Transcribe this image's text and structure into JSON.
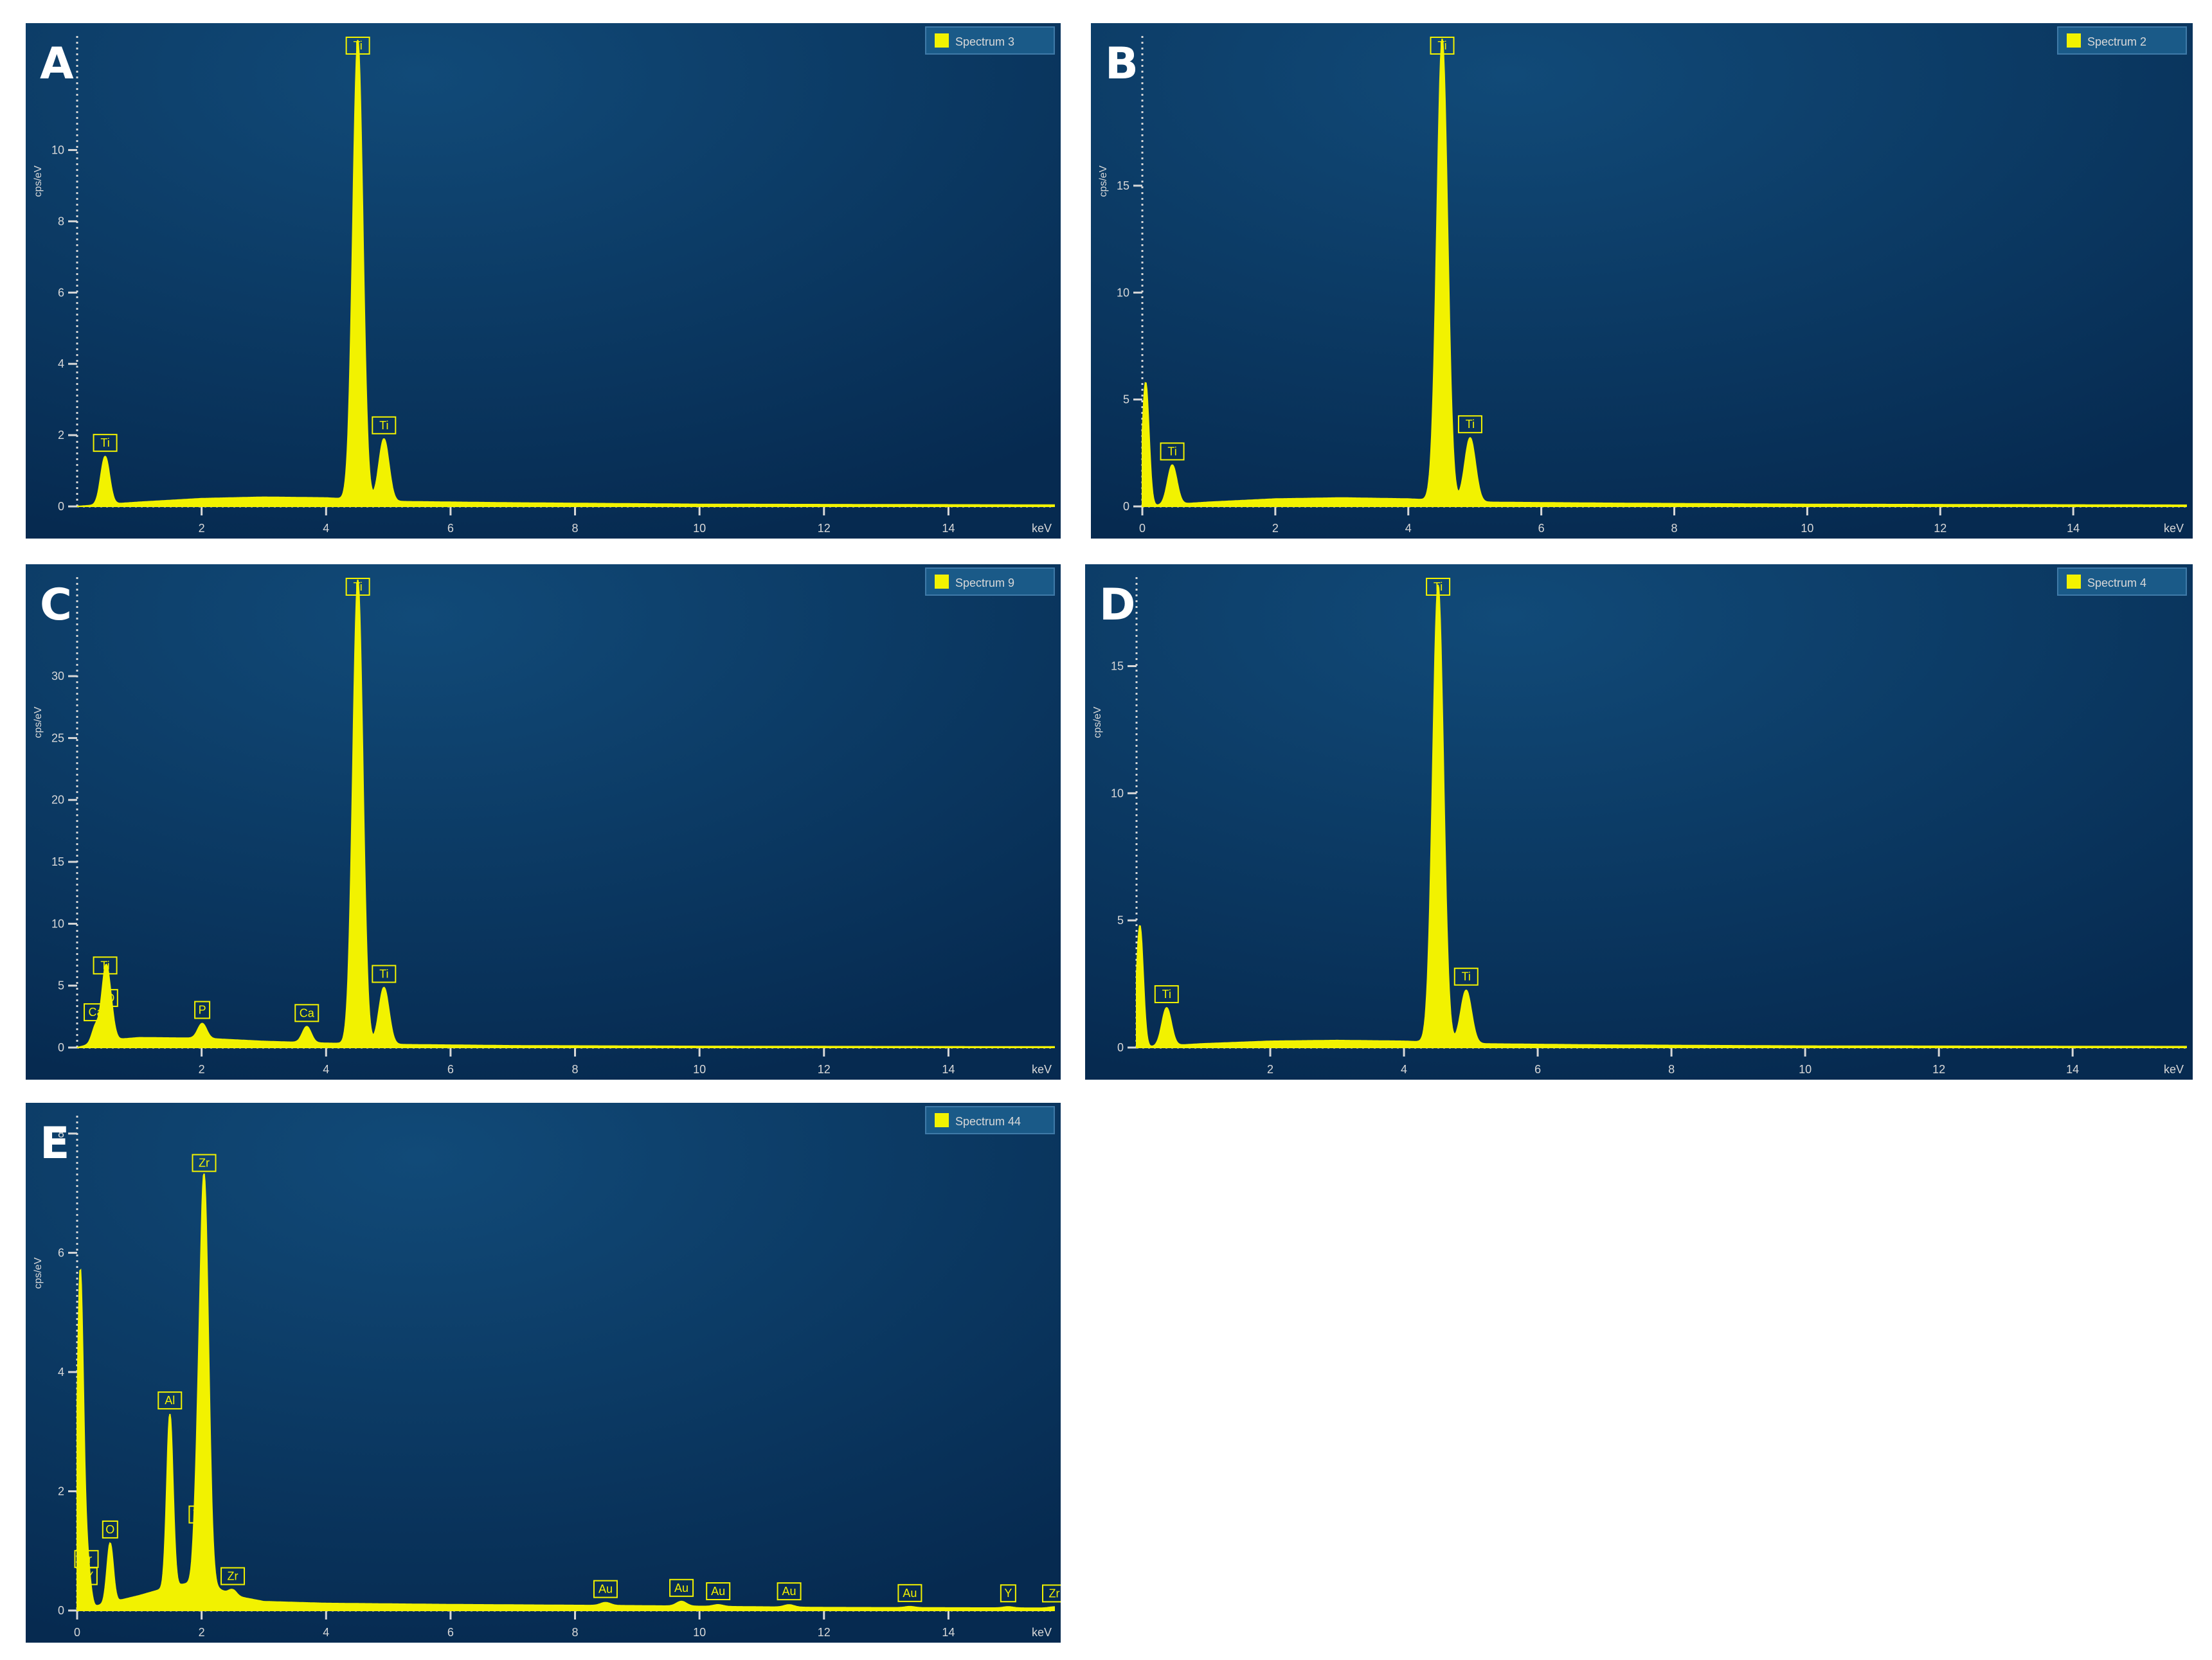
{
  "figure": {
    "colors": {
      "trace": "#f2f200",
      "bg_top": "#114a78",
      "bg_bottom": "#062a50",
      "axis": "#d8d8d8",
      "legend_bg": "#1a5a88"
    }
  },
  "panels": [
    {
      "letter": "A",
      "legend": "Spectrum 3",
      "chart_data": {
        "type": "line",
        "xlabel": "keV",
        "ylabel": "cps/eV",
        "xlim": [
          0,
          15.7
        ],
        "ylim": [
          0,
          13.2
        ],
        "xticks": [
          2,
          4,
          6,
          8,
          10,
          12,
          14
        ],
        "yticks": [
          0,
          2,
          4,
          6,
          8,
          10
        ],
        "baseline": {
          "x": [
            0,
            1,
            2,
            3,
            4,
            5,
            7,
            10,
            15.7
          ],
          "y": [
            0,
            0.12,
            0.22,
            0.26,
            0.24,
            0.14,
            0.1,
            0.06,
            0.04
          ]
        },
        "peaks": [
          {
            "label": "Ti",
            "x": 0.45,
            "height": 1.35,
            "width": 0.07
          },
          {
            "label": "Ti",
            "x": 4.51,
            "height": 12.9,
            "width": 0.08
          },
          {
            "label": "Ti",
            "x": 4.93,
            "height": 1.75,
            "width": 0.08
          }
        ]
      }
    },
    {
      "letter": "B",
      "legend": "Spectrum 2",
      "chart_data": {
        "type": "line",
        "xlabel": "keV",
        "ylabel": "cps/eV",
        "xlim": [
          0,
          15.7
        ],
        "ylim": [
          0,
          22
        ],
        "xticks": [
          0,
          2,
          4,
          6,
          8,
          10,
          12,
          14
        ],
        "yticks": [
          0,
          5,
          10,
          15
        ],
        "baseline": {
          "x": [
            0,
            1,
            2,
            3,
            4,
            5,
            7,
            10,
            15.7
          ],
          "y": [
            0,
            0.2,
            0.35,
            0.4,
            0.35,
            0.2,
            0.15,
            0.1,
            0.06
          ]
        },
        "peaks": [
          {
            "label": "",
            "x": 0.05,
            "height": 5.8,
            "width": 0.05
          },
          {
            "label": "Ti",
            "x": 0.45,
            "height": 1.85,
            "width": 0.07
          },
          {
            "label": "Ti",
            "x": 4.51,
            "height": 21.6,
            "width": 0.08
          },
          {
            "label": "Ti",
            "x": 4.93,
            "height": 3.0,
            "width": 0.08
          }
        ]
      }
    },
    {
      "letter": "C",
      "legend": "Spectrum 9",
      "chart_data": {
        "type": "line",
        "xlabel": "keV",
        "ylabel": "cps/eV",
        "xlim": [
          0,
          15.7
        ],
        "ylim": [
          0,
          38
        ],
        "xticks": [
          2,
          4,
          6,
          8,
          10,
          12,
          14
        ],
        "yticks": [
          0,
          5,
          10,
          15,
          20,
          25,
          30
        ],
        "baseline": {
          "x": [
            0,
            0.5,
            1,
            2,
            3,
            4,
            5,
            7,
            10,
            15.7
          ],
          "y": [
            0,
            0.6,
            0.8,
            0.75,
            0.5,
            0.35,
            0.25,
            0.15,
            0.1,
            0.06
          ]
        },
        "peaks": [
          {
            "label": "Ca",
            "x": 0.3,
            "height": 1.4,
            "width": 0.06
          },
          {
            "label": "Ti",
            "x": 0.45,
            "height": 5.0,
            "width": 0.06
          },
          {
            "label": "O",
            "x": 0.53,
            "height": 2.3,
            "width": 0.06
          },
          {
            "label": "P",
            "x": 2.01,
            "height": 1.2,
            "width": 0.07
          },
          {
            "label": "Ca",
            "x": 3.69,
            "height": 1.3,
            "width": 0.07
          },
          {
            "label": "Ti",
            "x": 4.51,
            "height": 37.5,
            "width": 0.08
          },
          {
            "label": "Ti",
            "x": 4.93,
            "height": 4.6,
            "width": 0.08
          }
        ]
      }
    },
    {
      "letter": "D",
      "legend": "Spectrum 4",
      "chart_data": {
        "type": "line",
        "xlabel": "keV",
        "ylabel": "cps/eV",
        "xlim": [
          0,
          15.7
        ],
        "ylim": [
          0,
          18.5
        ],
        "xticks": [
          2,
          4,
          6,
          8,
          10,
          12,
          14
        ],
        "yticks": [
          0,
          5,
          10,
          15
        ],
        "baseline": {
          "x": [
            0,
            1,
            2,
            3,
            4,
            5,
            7,
            10,
            15.7
          ],
          "y": [
            0,
            0.15,
            0.25,
            0.28,
            0.25,
            0.15,
            0.1,
            0.06,
            0.04
          ]
        },
        "peaks": [
          {
            "label": "",
            "x": 0.05,
            "height": 4.8,
            "width": 0.05
          },
          {
            "label": "Ti",
            "x": 0.45,
            "height": 1.5,
            "width": 0.07
          },
          {
            "label": "Ti",
            "x": 4.51,
            "height": 18.0,
            "width": 0.08
          },
          {
            "label": "Ti",
            "x": 4.93,
            "height": 2.1,
            "width": 0.08
          }
        ]
      }
    },
    {
      "letter": "E",
      "legend": "Spectrum 44",
      "chart_data": {
        "type": "line",
        "xlabel": "keV",
        "ylabel": "cps/eV",
        "xlim": [
          0,
          15.7
        ],
        "ylim": [
          0,
          8.3
        ],
        "xticks": [
          0,
          2,
          4,
          6,
          8,
          10,
          12,
          14
        ],
        "yticks": [
          0,
          2,
          4,
          6,
          8
        ],
        "baseline": {
          "x": [
            0,
            1,
            1.5,
            2,
            2.5,
            3,
            4,
            6,
            9,
            12,
            15.7
          ],
          "y": [
            0,
            0.25,
            0.4,
            0.5,
            0.25,
            0.15,
            0.12,
            0.1,
            0.08,
            0.05,
            0.04
          ]
        },
        "peaks": [
          {
            "label": "",
            "x": 0.05,
            "height": 5.7,
            "width": 0.05
          },
          {
            "label": "Zr",
            "x": 0.15,
            "height": 0.6,
            "width": 0.04
          },
          {
            "label": "Y",
            "x": 0.2,
            "height": 0.3,
            "width": 0.04
          },
          {
            "label": "O",
            "x": 0.53,
            "height": 1.0,
            "width": 0.05
          },
          {
            "label": "Al",
            "x": 1.49,
            "height": 2.9,
            "width": 0.05
          },
          {
            "label": "Y",
            "x": 1.92,
            "height": 0.9,
            "width": 0.05
          },
          {
            "label": "Zr",
            "x": 2.04,
            "height": 6.8,
            "width": 0.07
          },
          {
            "label": "Zr",
            "x": 2.5,
            "height": 0.1,
            "width": 0.06
          },
          {
            "label": "Au",
            "x": 8.49,
            "height": 0.05,
            "width": 0.08
          },
          {
            "label": "Au",
            "x": 9.71,
            "height": 0.08,
            "width": 0.08
          },
          {
            "label": "Au",
            "x": 10.3,
            "height": 0.03,
            "width": 0.08
          },
          {
            "label": "Au",
            "x": 11.44,
            "height": 0.04,
            "width": 0.08
          },
          {
            "label": "Au",
            "x": 13.38,
            "height": 0.02,
            "width": 0.08
          },
          {
            "label": "Y",
            "x": 14.96,
            "height": 0.02,
            "width": 0.08
          },
          {
            "label": "Zr",
            "x": 15.7,
            "height": 0.02,
            "width": 0.08
          }
        ]
      }
    }
  ]
}
